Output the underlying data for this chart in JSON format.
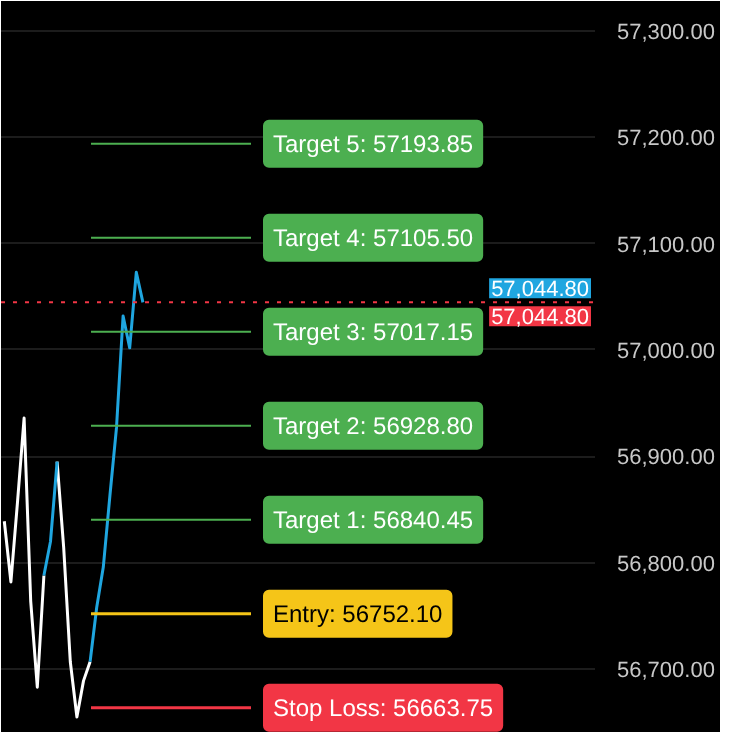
{
  "chart_data": {
    "type": "line",
    "categories": [
      null,
      null,
      null,
      null,
      null,
      null,
      null,
      null,
      null,
      null,
      null,
      null,
      null,
      null,
      null,
      null,
      null,
      null,
      null,
      null,
      null,
      null,
      null,
      null,
      null,
      null,
      null,
      null,
      null,
      null,
      null,
      null,
      null,
      null,
      null,
      null,
      null,
      null,
      null,
      null,
      null,
      null,
      null,
      null,
      null,
      null,
      null,
      null,
      null,
      null,
      null,
      null,
      null,
      null,
      null,
      null,
      null,
      null,
      null,
      null,
      null,
      null,
      null,
      null,
      null,
      null,
      null,
      null,
      null,
      null,
      null,
      null,
      null,
      null,
      null,
      null,
      null,
      null,
      null,
      null,
      null,
      null,
      null,
      null,
      null,
      null,
      null,
      null,
      null,
      null
    ],
    "series": [
      {
        "color": "#ffffff",
        "values": [
          56839,
          56782,
          56857,
          56936,
          56764,
          56683,
          56788,
          null,
          56895,
          56814,
          56707,
          56655,
          56689,
          56707,
          null,
          null,
          null,
          null,
          null,
          null,
          null,
          null,
          null,
          null,
          null,
          null,
          null,
          null,
          null,
          null,
          null,
          null,
          null,
          null,
          null,
          null,
          null,
          null,
          null,
          null,
          null,
          null,
          null,
          null,
          null,
          null,
          null,
          null,
          null,
          null,
          null,
          null,
          null,
          null,
          null,
          null,
          null,
          null,
          null,
          null,
          null,
          null,
          null,
          null,
          null,
          null,
          null,
          null,
          null,
          null,
          null,
          null,
          null,
          null,
          null,
          null,
          null,
          null,
          null,
          null,
          null,
          null,
          null,
          null,
          null,
          null,
          null,
          null,
          null,
          null
        ]
      },
      {
        "color": "#1fa6e0",
        "values": [
          null,
          null,
          null,
          null,
          null,
          null,
          56788,
          56820,
          56895,
          null,
          null,
          null,
          null,
          56707,
          56758,
          56796,
          56863,
          56927,
          57032,
          57002,
          57073,
          57044.8,
          null,
          null,
          null,
          null,
          null,
          null,
          null,
          null,
          null,
          null,
          null,
          null,
          null,
          null,
          null,
          null,
          null,
          null,
          null,
          null,
          null,
          null,
          null,
          null,
          null,
          null,
          null,
          null,
          null,
          null,
          null,
          null,
          null,
          null,
          null,
          null,
          null,
          null,
          null,
          null,
          null,
          null,
          null,
          null,
          null,
          null,
          null,
          null,
          null,
          null,
          null,
          null,
          null,
          null,
          null,
          null,
          null,
          null,
          null,
          null,
          null,
          null,
          null,
          null,
          null,
          null,
          null,
          null
        ]
      }
    ],
    "ylim": [
      56640,
      57328
    ],
    "yticks": [
      {
        "value": 56700,
        "label": "56,700.00"
      },
      {
        "value": 56800,
        "label": "56,800.00"
      },
      {
        "value": 56900,
        "label": "56,900.00"
      },
      {
        "value": 57000,
        "label": "57,000.00"
      },
      {
        "value": 57100,
        "label": "57,100.00"
      },
      {
        "value": 57200,
        "label": "57,200.00"
      },
      {
        "value": 57300,
        "label": "57,300.00"
      }
    ],
    "tick_labels": "y",
    "grid": "y",
    "line_style": "solid",
    "marker": "none",
    "ref_lines": [
      {
        "axis": "y",
        "value": 57193.85,
        "label": "Target 5: 57193.85",
        "color": "#4caf50"
      },
      {
        "axis": "y",
        "value": 57105.5,
        "label": "Target 4: 57105.50",
        "color": "#4caf50"
      },
      {
        "axis": "y",
        "value": 57017.15,
        "label": "Target 3: 57017.15",
        "color": "#4caf50"
      },
      {
        "axis": "y",
        "value": 56928.8,
        "label": "Target 2: 56928.80",
        "color": "#4caf50"
      },
      {
        "axis": "y",
        "value": 56840.45,
        "label": "Target 1: 56840.45",
        "color": "#4caf50"
      },
      {
        "axis": "y",
        "value": 56752.1,
        "label": "Entry: 56752.10",
        "color": "#f5c518"
      },
      {
        "axis": "y",
        "value": 56663.75,
        "label": "Stop Loss: 56663.75",
        "color": "#f23645"
      },
      {
        "axis": "y",
        "value": 57044.8,
        "label": "57,044.80",
        "color": "#f23645",
        "line_style": "dotted"
      }
    ],
    "annotations": [
      {
        "text": "57,044.80",
        "y": 57044.8
      }
    ]
  }
}
